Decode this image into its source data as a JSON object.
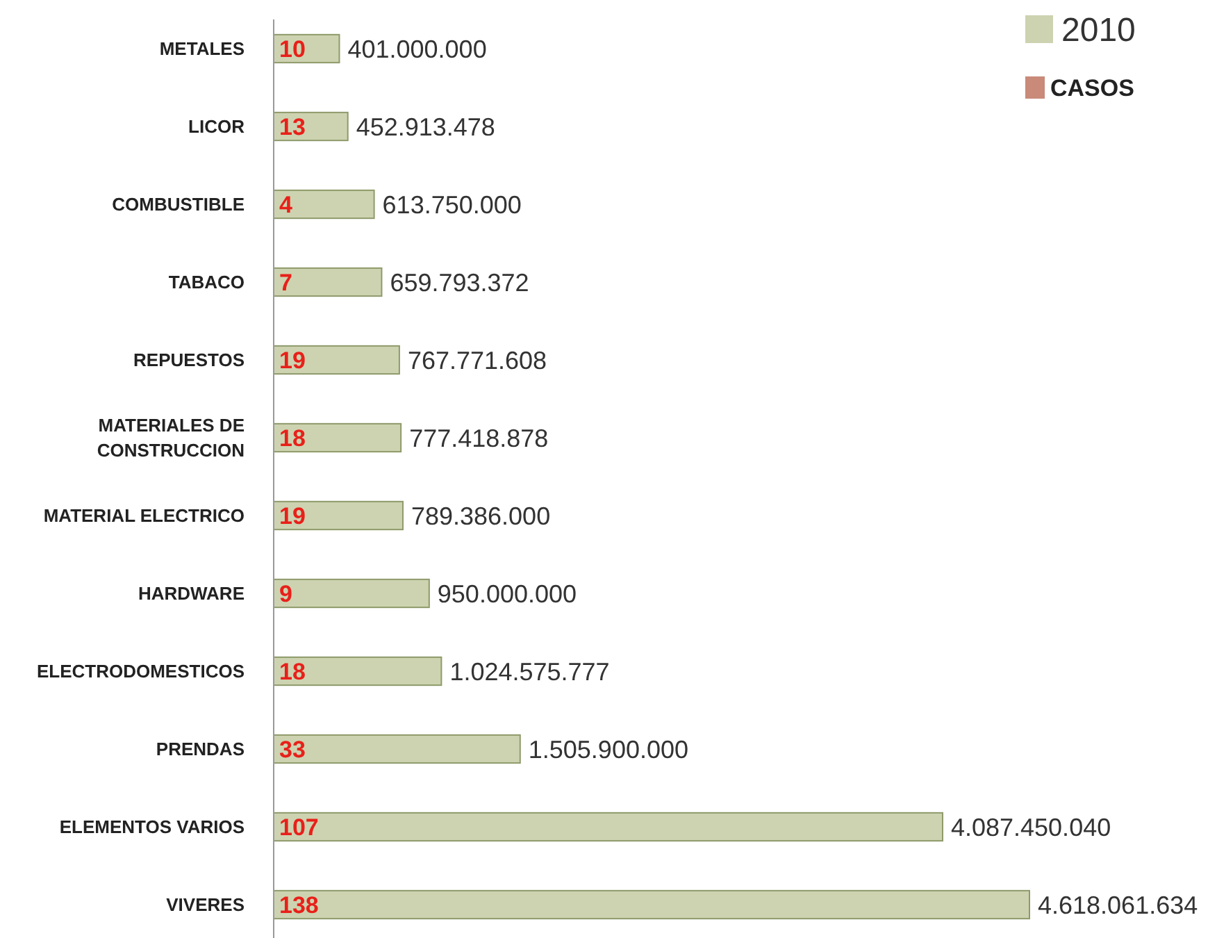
{
  "chart_data": {
    "type": "bar",
    "orientation": "horizontal",
    "legend": "top right",
    "categories": [
      "METALES",
      "LICOR",
      "COMBUSTIBLE",
      "TABACO",
      "REPUESTOS",
      "MATERIALES DE CONSTRUCCION",
      "MATERIAL ELECTRICO",
      "HARDWARE",
      "ELECTRODOMESTICOS",
      "PRENDAS",
      "ELEMENTOS VARIOS",
      "VIVERES"
    ],
    "series": [
      {
        "name": "CASOS",
        "color": "#c98a7a",
        "values": [
          10,
          13,
          4,
          7,
          19,
          18,
          19,
          9,
          18,
          33,
          107,
          138
        ],
        "value_labels": [
          "10",
          "13",
          "4",
          "7",
          "19",
          "18",
          "19",
          "9",
          "18",
          "33",
          "107",
          "138"
        ]
      },
      {
        "name": "2010",
        "color": "#cdd3b0",
        "values": [
          401000000,
          452913478,
          613750000,
          659793372,
          767771608,
          777418878,
          789386000,
          950000000,
          1024575777,
          1505900000,
          4087450040,
          4618061634
        ],
        "value_labels": [
          "401.000.000",
          "452.913.478",
          "613.750.000",
          "659.793.372",
          "767.771.608",
          "777.418.878",
          "789.386.000",
          "950.000.000",
          "1.024.575.777",
          "1.505.900.000",
          "4.087.450.040",
          "4.618.061.634"
        ]
      }
    ]
  }
}
